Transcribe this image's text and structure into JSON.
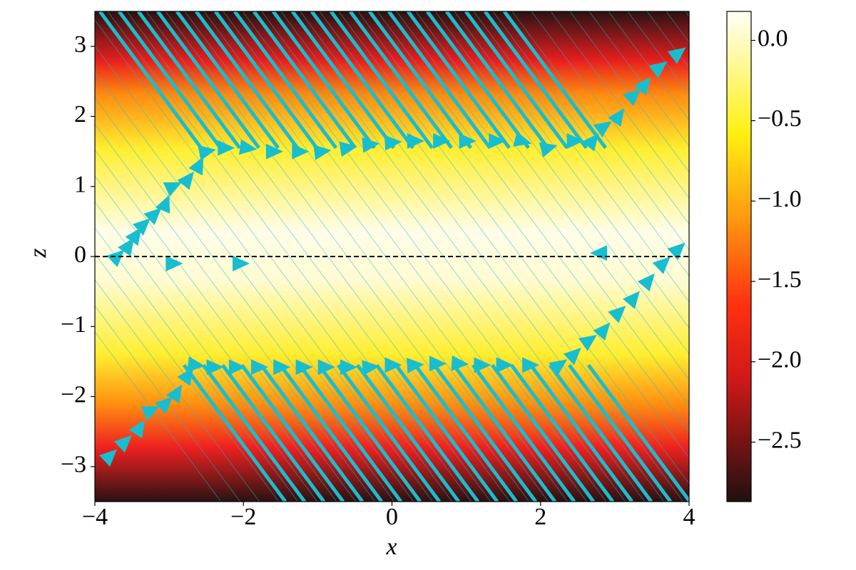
{
  "chart_data": {
    "type": "quiver-heatmap",
    "x_label": "x",
    "y_label": "z",
    "xlim": [
      -4,
      4
    ],
    "xticks": [
      {
        "value": -4,
        "label": "−4"
      },
      {
        "value": -2,
        "label": "−2"
      },
      0,
      2,
      4
    ],
    "ylim": [
      -3.5,
      3.5
    ],
    "yticks": [
      {
        "value": -3,
        "label": "−3"
      },
      {
        "value": -2,
        "label": "−2"
      },
      {
        "value": -1,
        "label": "−1"
      },
      0,
      1,
      2,
      3
    ],
    "arrow_color": "#17becf",
    "series": [
      {
        "x": [
          -3.7,
          -3.55,
          -3.45,
          -3.35,
          -3.2,
          -3.05,
          -2.95,
          -2.75,
          -2.6,
          -2.5,
          -2.25,
          -1.95,
          -1.6,
          -1.25,
          -0.95,
          -0.6,
          -0.3,
          0,
          0.3,
          0.65,
          1,
          1.4,
          1.75,
          2.1,
          2.45,
          2.7,
          2.85,
          3.05,
          3.25,
          3.4,
          3.6,
          3.85
        ],
        "z": [
          0,
          0.15,
          0.3,
          0.45,
          0.6,
          0.75,
          1.0,
          1.1,
          1.3,
          1.5,
          1.55,
          1.55,
          1.5,
          1.5,
          1.5,
          1.55,
          1.6,
          1.63,
          1.65,
          1.65,
          1.65,
          1.65,
          1.65,
          1.55,
          1.65,
          1.65,
          1.85,
          2.0,
          2.3,
          2.45,
          2.7,
          2.9
        ]
      },
      {
        "x": [
          -3.8,
          -3.6,
          -3.4,
          -3.25,
          -3.05,
          -2.9,
          -2.75,
          -2.65,
          -2.4,
          -2.1,
          -1.8,
          -1.5,
          -1.2,
          -0.9,
          -0.6,
          -0.3,
          0,
          0.3,
          0.6,
          0.9,
          1.2,
          1.5,
          1.85,
          2.25,
          2.45,
          2.65,
          2.85,
          3.05,
          3.25,
          3.45,
          3.65,
          3.85
        ],
        "z": [
          -2.85,
          -2.65,
          -2.45,
          -2.2,
          -2.1,
          -1.95,
          -1.7,
          -1.55,
          -1.58,
          -1.58,
          -1.58,
          -1.58,
          -1.58,
          -1.58,
          -1.58,
          -1.58,
          -1.55,
          -1.55,
          -1.53,
          -1.53,
          -1.55,
          -1.55,
          -1.55,
          -1.55,
          -1.4,
          -1.2,
          -1.05,
          -0.8,
          -0.6,
          -0.35,
          -0.1,
          0.1
        ]
      },
      {
        "x": [
          -2.95,
          -2.05,
          2.8
        ],
        "z": [
          -0.1,
          -0.1,
          0.05
        ]
      }
    ],
    "colorbar": {
      "clim": [
        -2.87,
        0.18
      ],
      "ticks": [
        {
          "value": -2.5,
          "label": "−2.5"
        },
        {
          "value": -2.0,
          "label": "−2.0"
        },
        {
          "value": -1.5,
          "label": "−1.5"
        },
        {
          "value": -1.0,
          "label": "−1.0"
        },
        {
          "value": -0.5,
          "label": "−0.5"
        },
        {
          "value": 0.0,
          "label": "0.0"
        }
      ]
    }
  }
}
